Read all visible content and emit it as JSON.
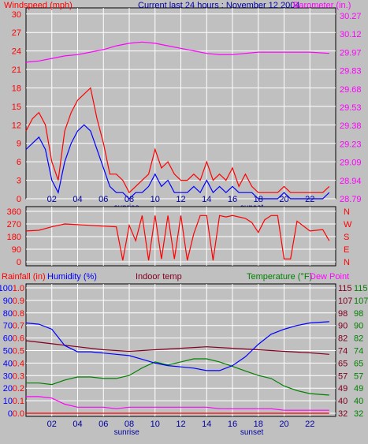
{
  "header": {
    "title": "Current last 24 hours : November 12 2004",
    "left_label": "Windspeed (mph)",
    "right_label": "Barometer (in.)"
  },
  "colors": {
    "background": "#c0c0c0",
    "wind": "#ff0000",
    "gust_fill": "#0000ff",
    "barometer": "#ff00ff",
    "direction": "#ff0000",
    "humidity": "#0000ff",
    "indoor": "#800020",
    "temperature": "#008000",
    "dewpoint": "#ff00ff",
    "rainfall": "#ff0000",
    "axis_blue": "#0000a0",
    "grid": "#ffffff"
  },
  "time_axis": {
    "ticks": [
      "02",
      "04",
      "06",
      "08",
      "10",
      "12",
      "14",
      "16",
      "18",
      "20",
      "22"
    ],
    "sunrise_label": "sunrise",
    "sunset_label": "sunset",
    "sunrise_hour": 7.8,
    "sunset_hour": 17.5
  },
  "chart_data": [
    {
      "type": "line",
      "name": "wind",
      "y_left_label": "Windspeed (mph)",
      "y_left_ticks": [
        "0",
        "3",
        "6",
        "9",
        "12",
        "15",
        "18",
        "21",
        "24",
        "27",
        "30"
      ],
      "y_left_range": [
        0,
        31
      ],
      "y_right_label": "Barometer (in.)",
      "y_right_ticks": [
        "28.79",
        "28.94",
        "29.09",
        "29.23",
        "29.38",
        "29.53",
        "29.68",
        "29.83",
        "29.97",
        "30.12",
        "30.27"
      ],
      "y_right_range": [
        28.79,
        30.3
      ],
      "barometer": {
        "x": [
          0,
          1,
          2,
          3,
          4,
          5,
          6,
          7,
          8,
          9,
          10,
          11,
          12,
          13,
          14,
          15,
          16,
          17,
          18,
          19,
          20,
          21,
          22,
          23.5
        ],
        "y": [
          29.87,
          29.88,
          29.9,
          29.92,
          29.93,
          29.95,
          29.97,
          30.0,
          30.02,
          30.03,
          30.02,
          30.0,
          29.98,
          29.96,
          29.94,
          29.93,
          29.93,
          29.94,
          29.95,
          29.95,
          29.95,
          29.95,
          29.95,
          29.94
        ]
      },
      "wind_speed": {
        "x": [
          0,
          0.5,
          1,
          1.5,
          2,
          2.5,
          3,
          3.5,
          4,
          4.5,
          5,
          5.5,
          6,
          6.5,
          7,
          7.5,
          8,
          8.5,
          9,
          9.5,
          10,
          10.5,
          11,
          11.5,
          12,
          12.5,
          13,
          13.5,
          14,
          14.5,
          15,
          15.5,
          16,
          16.5,
          17,
          17.5,
          18,
          18.5,
          19,
          19.5,
          20,
          20.5,
          21,
          21.5,
          22,
          22.5,
          23,
          23.5
        ],
        "y": [
          11,
          13,
          14,
          12,
          6,
          3,
          11,
          14,
          16,
          17,
          18,
          13,
          9,
          4,
          4,
          3,
          1,
          2,
          3,
          4,
          8,
          5,
          6,
          4,
          3,
          3,
          4,
          3,
          6,
          3,
          4,
          3,
          5,
          2,
          4,
          2,
          1,
          1,
          1,
          1,
          2,
          1,
          1,
          1,
          1,
          1,
          1,
          2
        ]
      },
      "wind_avg": {
        "x": [
          0,
          0.5,
          1,
          1.5,
          2,
          2.5,
          3,
          3.5,
          4,
          4.5,
          5,
          5.5,
          6,
          6.5,
          7,
          7.5,
          8,
          8.5,
          9,
          9.5,
          10,
          10.5,
          11,
          11.5,
          12,
          12.5,
          13,
          13.5,
          14,
          14.5,
          15,
          15.5,
          16,
          16.5,
          17,
          17.5,
          18,
          18.5,
          19,
          19.5,
          20,
          20.5,
          21,
          21.5,
          22,
          22.5,
          23,
          23.5
        ],
        "y": [
          8,
          9,
          10,
          8,
          3,
          1,
          6,
          9,
          11,
          12,
          11,
          8,
          5,
          2,
          1,
          1,
          0,
          1,
          1,
          2,
          4,
          2,
          3,
          1,
          1,
          1,
          2,
          1,
          3,
          1,
          2,
          1,
          2,
          1,
          1,
          1,
          0,
          0,
          0,
          0,
          1,
          0,
          0,
          0,
          0,
          0,
          0,
          1
        ]
      }
    },
    {
      "type": "line",
      "name": "direction",
      "y_left_ticks": [
        "360",
        "270",
        "180",
        "90",
        "0"
      ],
      "y_left_range": [
        0,
        360
      ],
      "y_right_ticks": [
        "N",
        "W",
        "S",
        "E",
        "N"
      ],
      "x": [
        0,
        1,
        2,
        3,
        4,
        5,
        6,
        7,
        7.5,
        8,
        8.5,
        9,
        9.5,
        10,
        10.5,
        11,
        11.5,
        12,
        12.5,
        13,
        13.5,
        14,
        14.5,
        15,
        15.5,
        16,
        17,
        17.5,
        18,
        18.5,
        19,
        19.5,
        20,
        20.5,
        21,
        22,
        23,
        23.5
      ],
      "y": [
        220,
        225,
        250,
        270,
        265,
        260,
        255,
        250,
        10,
        260,
        150,
        330,
        10,
        330,
        20,
        330,
        20,
        330,
        10,
        200,
        330,
        330,
        10,
        330,
        320,
        330,
        310,
        280,
        210,
        300,
        330,
        330,
        20,
        20,
        290,
        220,
        230,
        150
      ]
    },
    {
      "type": "line",
      "name": "climate",
      "y_left_label_rain": "Rainfall (in)",
      "y_left_label_humidity": "Humidity (%)",
      "y_mid_label": "Indoor temp",
      "y_right_label_temp": "Temperature (°F)",
      "y_right_label_dew": "Dew Point",
      "rain_ticks": [
        "0.0",
        "0.1",
        "0.2",
        "0.3",
        "0.4",
        "0.5",
        "0.6",
        "0.7",
        "0.8",
        "0.9",
        "1.0"
      ],
      "humidity_ticks": [
        "0",
        "10",
        "20",
        "30",
        "40",
        "50",
        "60",
        "70",
        "80",
        "90",
        "100"
      ],
      "indoor_ticks": [
        "32",
        "40",
        "49",
        "57",
        "65",
        "74",
        "82",
        "90",
        "98",
        "107",
        "115"
      ],
      "temp_ticks": [
        "32",
        "40",
        "49",
        "57",
        "65",
        "74",
        "82",
        "90",
        "98",
        "107",
        "115"
      ],
      "humidity": {
        "x": [
          0,
          1,
          2,
          3,
          4,
          5,
          6,
          7,
          8,
          9,
          10,
          11,
          12,
          13,
          14,
          15,
          16,
          17,
          18,
          19,
          20,
          21,
          22,
          23.5
        ],
        "y": [
          72,
          71,
          67,
          54,
          49,
          49,
          48,
          47,
          46,
          43,
          40,
          38,
          37,
          36,
          34,
          34,
          38,
          45,
          55,
          63,
          67,
          70,
          72,
          73
        ]
      },
      "indoor_temp": {
        "x": [
          0,
          2,
          4,
          6,
          8,
          10,
          12,
          14,
          16,
          18,
          20,
          22,
          23.5
        ],
        "y": [
          80,
          78,
          76,
          74,
          73,
          74,
          75,
          76,
          75,
          74,
          73,
          72,
          71
        ]
      },
      "temperature": {
        "x": [
          0,
          1,
          2,
          3,
          4,
          5,
          6,
          7,
          8,
          9,
          10,
          11,
          12,
          13,
          14,
          15,
          16,
          17,
          18,
          19,
          20,
          21,
          22,
          23.5
        ],
        "y": [
          52,
          52,
          51,
          54,
          56,
          56,
          55,
          55,
          57,
          62,
          66,
          64,
          66,
          68,
          68,
          66,
          63,
          60,
          57,
          55,
          50,
          47,
          45,
          44
        ]
      },
      "dew_point": {
        "x": [
          0,
          1,
          2,
          3,
          4,
          5,
          6,
          7,
          8,
          9,
          10,
          11,
          12,
          13,
          14,
          15,
          16,
          17,
          18,
          19,
          20,
          21,
          22,
          23.5
        ],
        "y": [
          43,
          43,
          42,
          38,
          36,
          36,
          36,
          35,
          36,
          36,
          36,
          36,
          36,
          36,
          36,
          35,
          35,
          35,
          35,
          35,
          34,
          34,
          34,
          34
        ]
      },
      "rainfall": {
        "x": [
          0,
          23.5
        ],
        "y": [
          0,
          0
        ]
      }
    }
  ]
}
